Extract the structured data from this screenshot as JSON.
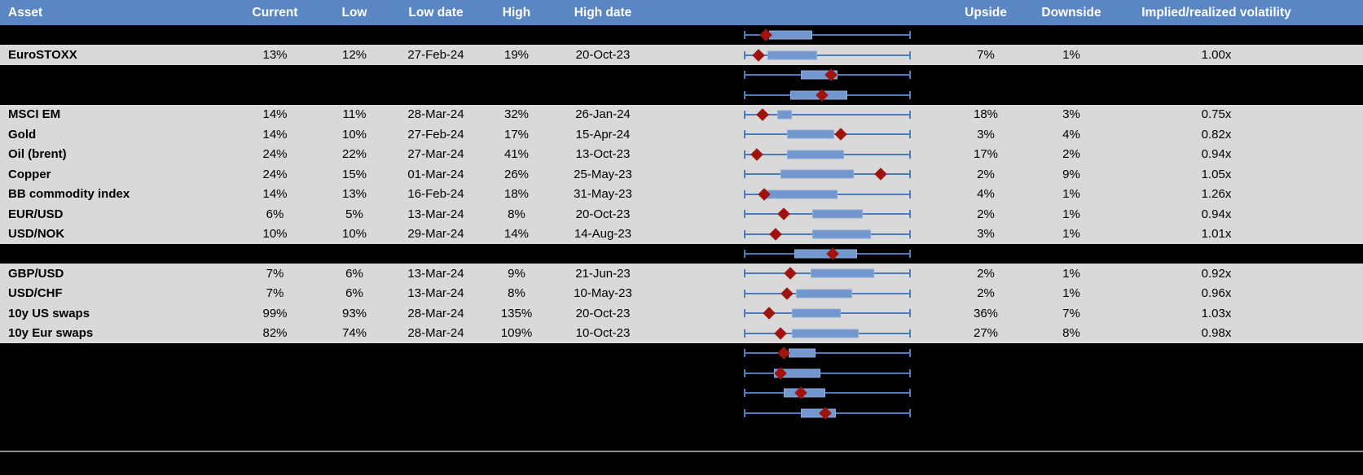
{
  "colors": {
    "header_bg": "#5B86C4",
    "row_bg": "#D9D9D9",
    "hidden_row_bg": "#000000",
    "box_fill": "#7296CE",
    "box_edge": "#8FACD9",
    "whisker": "#4C7CC0",
    "marker": "#A01410",
    "divider": "#8F8F8F",
    "header_text": "#FFFFFF",
    "body_text": "#000000"
  },
  "table": {
    "header": {
      "asset": "Asset",
      "current": "Current",
      "low": "Low",
      "low_date": "Low date",
      "high": "High",
      "high_date": "High date",
      "plot": "",
      "upside": "Upside",
      "downside": "Downside",
      "volatility": "Implied/realized volatility"
    }
  },
  "chart_data": {
    "type": "table",
    "title": "Implied volatility: current vs 12-month range by asset",
    "columns": [
      "Asset",
      "Current",
      "Low",
      "Low date",
      "High",
      "High date",
      "Range boxplot",
      "Upside",
      "Downside",
      "Implied/realized volatility"
    ],
    "boxplot_note": "Each row has a whisker spanning the full range (0-100%); box_lo/box_hi/marker are percent positions along the whisker; marker is the dark-red diamond (current level). Rows with kind 'redacted' are blacked out except their boxplot.",
    "legend_position": "none",
    "grid": false,
    "rows": [
      {
        "kind": "redacted",
        "plot": {
          "box_lo": 15,
          "box_hi": 41,
          "marker": 13
        }
      },
      {
        "kind": "data",
        "asset": "EuroSTOXX",
        "current": "13%",
        "low": "12%",
        "low_date": "27-Feb-24",
        "high": "19%",
        "high_date": "20-Oct-23",
        "upside": "7%",
        "downside": "1%",
        "volatility": "1.00x",
        "plot": {
          "box_lo": 14,
          "box_hi": 44,
          "marker": 9
        }
      },
      {
        "kind": "redacted",
        "plot": {
          "box_lo": 34,
          "box_hi": 56,
          "marker": 52
        }
      },
      {
        "kind": "redacted",
        "plot": {
          "box_lo": 28,
          "box_hi": 62,
          "marker": 47
        }
      },
      {
        "kind": "data",
        "asset": "MSCI EM",
        "current": "14%",
        "low": "11%",
        "low_date": "28-Mar-24",
        "high": "32%",
        "high_date": "26-Jan-24",
        "upside": "18%",
        "downside": "3%",
        "volatility": "0.75x",
        "plot": {
          "box_lo": 20,
          "box_hi": 29,
          "marker": 11
        }
      },
      {
        "kind": "data",
        "asset": "Gold",
        "current": "14%",
        "low": "10%",
        "low_date": "27-Feb-24",
        "high": "17%",
        "high_date": "15-Apr-24",
        "upside": "3%",
        "downside": "4%",
        "volatility": "0.82x",
        "plot": {
          "box_lo": 26,
          "box_hi": 54,
          "marker": 58
        }
      },
      {
        "kind": "data",
        "asset": "Oil (brent)",
        "current": "24%",
        "low": "22%",
        "low_date": "27-Mar-24",
        "high": "41%",
        "high_date": "13-Oct-23",
        "upside": "17%",
        "downside": "2%",
        "volatility": "0.94x",
        "plot": {
          "box_lo": 26,
          "box_hi": 60,
          "marker": 8
        }
      },
      {
        "kind": "data",
        "asset": "Copper",
        "current": "24%",
        "low": "15%",
        "low_date": "01-Mar-24",
        "high": "26%",
        "high_date": "25-May-23",
        "upside": "2%",
        "downside": "9%",
        "volatility": "1.05x",
        "plot": {
          "box_lo": 22,
          "box_hi": 66,
          "marker": 82
        }
      },
      {
        "kind": "data",
        "asset": "BB commodity index",
        "current": "14%",
        "low": "13%",
        "low_date": "16-Feb-24",
        "high": "18%",
        "high_date": "31-May-23",
        "upside": "4%",
        "downside": "1%",
        "volatility": "1.26x",
        "plot": {
          "box_lo": 13,
          "box_hi": 56,
          "marker": 12
        }
      },
      {
        "kind": "data",
        "asset": "EUR/USD",
        "current": "6%",
        "low": "5%",
        "low_date": "13-Mar-24",
        "high": "8%",
        "high_date": "20-Oct-23",
        "upside": "2%",
        "downside": "1%",
        "volatility": "0.94x",
        "plot": {
          "box_lo": 41,
          "box_hi": 71,
          "marker": 24
        }
      },
      {
        "kind": "data",
        "asset": "USD/NOK",
        "current": "10%",
        "low": "10%",
        "low_date": "29-Mar-24",
        "high": "14%",
        "high_date": "14-Aug-23",
        "upside": "3%",
        "downside": "1%",
        "volatility": "1.01x",
        "plot": {
          "box_lo": 41,
          "box_hi": 76,
          "marker": 19
        }
      },
      {
        "kind": "redacted",
        "plot": {
          "box_lo": 30,
          "box_hi": 68,
          "marker": 53
        }
      },
      {
        "kind": "data",
        "asset": "GBP/USD",
        "current": "7%",
        "low": "6%",
        "low_date": "13-Mar-24",
        "high": "9%",
        "high_date": "21-Jun-23",
        "upside": "2%",
        "downside": "1%",
        "volatility": "0.92x",
        "plot": {
          "box_lo": 40,
          "box_hi": 78,
          "marker": 28
        }
      },
      {
        "kind": "data",
        "asset": "USD/CHF",
        "current": "7%",
        "low": "6%",
        "low_date": "13-Mar-24",
        "high": "8%",
        "high_date": "10-May-23",
        "upside": "2%",
        "downside": "1%",
        "volatility": "0.96x",
        "plot": {
          "box_lo": 31,
          "box_hi": 65,
          "marker": 26
        }
      },
      {
        "kind": "data",
        "asset": "10y US swaps",
        "current": "99%",
        "low": "93%",
        "low_date": "28-Mar-24",
        "high": "135%",
        "high_date": "20-Oct-23",
        "upside": "36%",
        "downside": "7%",
        "volatility": "1.03x",
        "plot": {
          "box_lo": 29,
          "box_hi": 58,
          "marker": 15
        }
      },
      {
        "kind": "data",
        "asset": "10y Eur swaps",
        "current": "82%",
        "low": "74%",
        "low_date": "28-Mar-24",
        "high": "109%",
        "high_date": "10-Oct-23",
        "upside": "27%",
        "downside": "8%",
        "volatility": "0.98x",
        "plot": {
          "box_lo": 29,
          "box_hi": 69,
          "marker": 22
        }
      },
      {
        "kind": "redacted",
        "plot": {
          "box_lo": 27,
          "box_hi": 43,
          "marker": 24
        }
      },
      {
        "kind": "redacted",
        "plot": {
          "box_lo": 18,
          "box_hi": 46,
          "marker": 22
        }
      },
      {
        "kind": "redacted",
        "plot": {
          "box_lo": 24,
          "box_hi": 49,
          "marker": 34
        }
      },
      {
        "kind": "redacted",
        "plot": {
          "box_lo": 34,
          "box_hi": 55,
          "marker": 49
        }
      }
    ]
  }
}
